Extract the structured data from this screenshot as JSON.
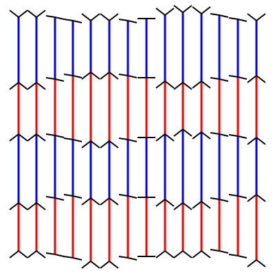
{
  "diagram": {
    "colors": {
      "background": "#ffffff",
      "segment_upper": "#0000ff",
      "segment_lower": "#ff0000",
      "marker": "#000000"
    },
    "columns": [
      {
        "marker_style": "peak",
        "upper_color": "segment_upper",
        "lower_color": "segment_lower"
      },
      {
        "marker_style": "peak",
        "upper_color": "segment_upper",
        "lower_color": "segment_lower"
      },
      {
        "marker_style": "slant",
        "upper_color": "segment_upper",
        "lower_color": "segment_lower"
      },
      {
        "marker_style": "slant",
        "upper_color": "segment_upper",
        "lower_color": "segment_lower"
      },
      {
        "marker_style": "peak",
        "upper_color": "segment_upper",
        "lower_color": "segment_lower"
      },
      {
        "marker_style": "peak",
        "upper_color": "segment_upper",
        "lower_color": "segment_lower"
      },
      {
        "marker_style": "slant",
        "upper_color": "segment_upper",
        "lower_color": "segment_lower"
      },
      {
        "marker_style": "flat",
        "upper_color": "segment_upper",
        "lower_color": "segment_lower"
      },
      {
        "marker_style": "peak",
        "upper_color": "segment_upper",
        "lower_color": "segment_lower"
      },
      {
        "marker_style": "peak",
        "upper_color": "segment_upper",
        "lower_color": "segment_lower"
      },
      {
        "marker_style": "peak",
        "upper_color": "segment_upper",
        "lower_color": "segment_lower"
      },
      {
        "marker_style": "slant",
        "upper_color": "segment_upper",
        "lower_color": "segment_lower"
      },
      {
        "marker_style": "slant",
        "upper_color": "segment_upper",
        "lower_color": "segment_lower"
      },
      {
        "marker_style": "peak",
        "upper_color": "segment_upper",
        "lower_color": "segment_lower"
      }
    ],
    "row_pattern": [
      "upper",
      "lower",
      "upper",
      "lower"
    ]
  }
}
